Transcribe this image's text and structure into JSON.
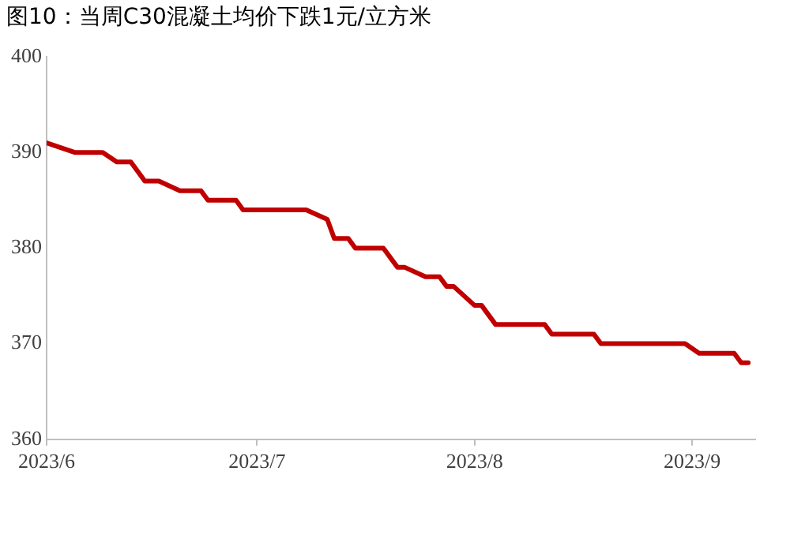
{
  "chart_data": {
    "type": "line",
    "title": "图10：当周C30混凝土均价下跌1元/立方米",
    "x": [
      "2023-06-01",
      "2023-06-05",
      "2023-06-09",
      "2023-06-11",
      "2023-06-13",
      "2023-06-15",
      "2023-06-17",
      "2023-06-20",
      "2023-06-23",
      "2023-06-24",
      "2023-06-28",
      "2023-06-29",
      "2023-07-08",
      "2023-07-11",
      "2023-07-12",
      "2023-07-14",
      "2023-07-15",
      "2023-07-19",
      "2023-07-21",
      "2023-07-22",
      "2023-07-25",
      "2023-07-27",
      "2023-07-28",
      "2023-07-29",
      "2023-08-01",
      "2023-08-02",
      "2023-08-04",
      "2023-08-11",
      "2023-08-12",
      "2023-08-18",
      "2023-08-19",
      "2023-08-31",
      "2023-09-02",
      "2023-09-07",
      "2023-09-08",
      "2023-09-09"
    ],
    "series": [
      {
        "color": "#c00000",
        "values": [
          391,
          390,
          390,
          389,
          389,
          387,
          387,
          386,
          386,
          385,
          385,
          384,
          384,
          383,
          381,
          381,
          380,
          380,
          378,
          378,
          377,
          377,
          376,
          376,
          374,
          374,
          372,
          372,
          371,
          371,
          370,
          370,
          369,
          369,
          368,
          368
        ]
      }
    ],
    "xlim": [
      "2023-06-01",
      "2023-09-10"
    ],
    "xticks": [
      {
        "value": "2023-06-01",
        "label": "2023/6"
      },
      {
        "value": "2023-07-01",
        "label": "2023/7"
      },
      {
        "value": "2023-08-01",
        "label": "2023/8"
      },
      {
        "value": "2023-09-01",
        "label": "2023/9"
      }
    ],
    "ylim": [
      360,
      400
    ],
    "yticks": [
      360,
      370,
      380,
      390,
      400
    ],
    "grid": false,
    "legend": false,
    "marker": "none",
    "line_style": "solid"
  }
}
